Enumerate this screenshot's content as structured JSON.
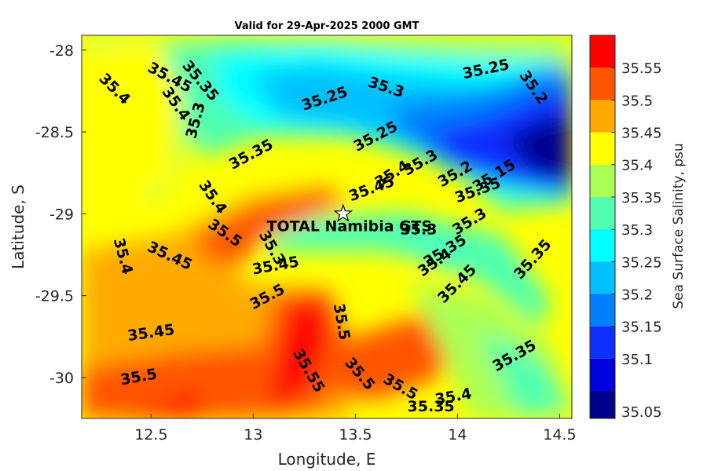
{
  "chart_data": {
    "type": "heatmap",
    "title": "Valid for 29-Apr-2025 2000 GMT",
    "xlabel": "Longitude, E",
    "ylabel": "Latitude, S",
    "xlim": [
      12.16,
      14.56
    ],
    "ylim": [
      -30.25,
      -27.91
    ],
    "x_ticks": [
      "12.5",
      "13",
      "13.5",
      "14",
      "14.5"
    ],
    "x_tick_values": [
      12.5,
      13.0,
      13.5,
      14.0,
      14.5
    ],
    "y_ticks": [
      "-28",
      "-28.5",
      "-29",
      "-29.5",
      "-30"
    ],
    "y_tick_values": [
      -28.0,
      -28.5,
      -29.0,
      -29.5,
      -30.0
    ],
    "colorbar": {
      "label": "Sea Surface Salinity, psu",
      "ticks": [
        "35.05",
        "35.1",
        "35.15",
        "35.2",
        "35.25",
        "35.3",
        "35.35",
        "35.4",
        "35.45",
        "35.5",
        "35.55"
      ],
      "levels": [
        35.05,
        35.1,
        35.15,
        35.2,
        35.25,
        35.3,
        35.35,
        35.4,
        35.45,
        35.5,
        35.55
      ],
      "colors": [
        "#00008f",
        "#0000df",
        "#0f2fff",
        "#0080ff",
        "#00c0ff",
        "#00ffff",
        "#50ffb0",
        "#aaff55",
        "#ffff00",
        "#ffaa00",
        "#ff5500",
        "#ff0000"
      ]
    },
    "station": {
      "name": "TOTAL Namibia GTS",
      "lon": 13.44,
      "lat": -29.0
    },
    "contour_labels": [
      {
        "text": "35.4",
        "lon": 12.32,
        "lat": -28.24,
        "angle": -45
      },
      {
        "text": "35.45",
        "lon": 12.59,
        "lat": -28.17,
        "angle": -28
      },
      {
        "text": "35.35",
        "lon": 12.74,
        "lat": -28.19,
        "angle": -50
      },
      {
        "text": "35.4",
        "lon": 12.62,
        "lat": -28.33,
        "angle": -55
      },
      {
        "text": "35.3",
        "lon": 12.72,
        "lat": -28.43,
        "angle": 75
      },
      {
        "text": "35.25",
        "lon": 13.35,
        "lat": -28.3,
        "angle": 18
      },
      {
        "text": "35.3",
        "lon": 13.65,
        "lat": -28.23,
        "angle": -18
      },
      {
        "text": "35.25",
        "lon": 14.14,
        "lat": -28.12,
        "angle": 12
      },
      {
        "text": "35.2",
        "lon": 14.37,
        "lat": -28.23,
        "angle": -55
      },
      {
        "text": "35.35",
        "lon": 12.99,
        "lat": -28.64,
        "angle": 28
      },
      {
        "text": "35.25",
        "lon": 13.6,
        "lat": -28.53,
        "angle": 28
      },
      {
        "text": "35.3",
        "lon": 13.82,
        "lat": -28.69,
        "angle": 30
      },
      {
        "text": "35.4",
        "lon": 13.68,
        "lat": -28.76,
        "angle": 32
      },
      {
        "text": "35.2",
        "lon": 13.99,
        "lat": -28.76,
        "angle": 30
      },
      {
        "text": "35.15",
        "lon": 14.18,
        "lat": -28.77,
        "angle": 32
      },
      {
        "text": "35.35",
        "lon": 14.1,
        "lat": -28.86,
        "angle": 20
      },
      {
        "text": "35.45",
        "lon": 13.58,
        "lat": -28.85,
        "angle": 20
      },
      {
        "text": "35.4",
        "lon": 12.8,
        "lat": -28.9,
        "angle": -55
      },
      {
        "text": "35.3",
        "lon": 14.06,
        "lat": -29.05,
        "angle": 32
      },
      {
        "text": "35.3",
        "lon": 13.81,
        "lat": -29.1,
        "angle": 0
      },
      {
        "text": "35.35",
        "lon": 13.94,
        "lat": -29.23,
        "angle": 32
      },
      {
        "text": "35.35",
        "lon": 14.37,
        "lat": -29.28,
        "angle": 48
      },
      {
        "text": "35.4",
        "lon": 13.89,
        "lat": -29.3,
        "angle": 35
      },
      {
        "text": "35.45",
        "lon": 14.0,
        "lat": -29.43,
        "angle": 45
      },
      {
        "text": "35.4",
        "lon": 12.36,
        "lat": -29.26,
        "angle": -75
      },
      {
        "text": "35.45",
        "lon": 12.59,
        "lat": -29.26,
        "angle": -25
      },
      {
        "text": "35.5",
        "lon": 12.86,
        "lat": -29.12,
        "angle": -35
      },
      {
        "text": "35.3",
        "lon": 13.09,
        "lat": -29.21,
        "angle": -60
      },
      {
        "text": "35.45",
        "lon": 13.11,
        "lat": -29.32,
        "angle": 10
      },
      {
        "text": "35.5",
        "lon": 13.07,
        "lat": -29.51,
        "angle": 28
      },
      {
        "text": "35.45",
        "lon": 12.5,
        "lat": -29.73,
        "angle": 8
      },
      {
        "text": "35.5",
        "lon": 13.43,
        "lat": -29.66,
        "angle": -80
      },
      {
        "text": "35.55",
        "lon": 13.27,
        "lat": -29.96,
        "angle": -60
      },
      {
        "text": "35.5",
        "lon": 12.44,
        "lat": -30.0,
        "angle": 10
      },
      {
        "text": "35.5",
        "lon": 13.52,
        "lat": -29.98,
        "angle": -50
      },
      {
        "text": "35.5",
        "lon": 13.72,
        "lat": -30.06,
        "angle": -30
      },
      {
        "text": "35.4",
        "lon": 13.98,
        "lat": -30.12,
        "angle": 10
      },
      {
        "text": "35.35",
        "lon": 13.87,
        "lat": -30.18,
        "angle": 0
      },
      {
        "text": "35.35",
        "lon": 14.28,
        "lat": -29.87,
        "angle": 30
      }
    ]
  }
}
